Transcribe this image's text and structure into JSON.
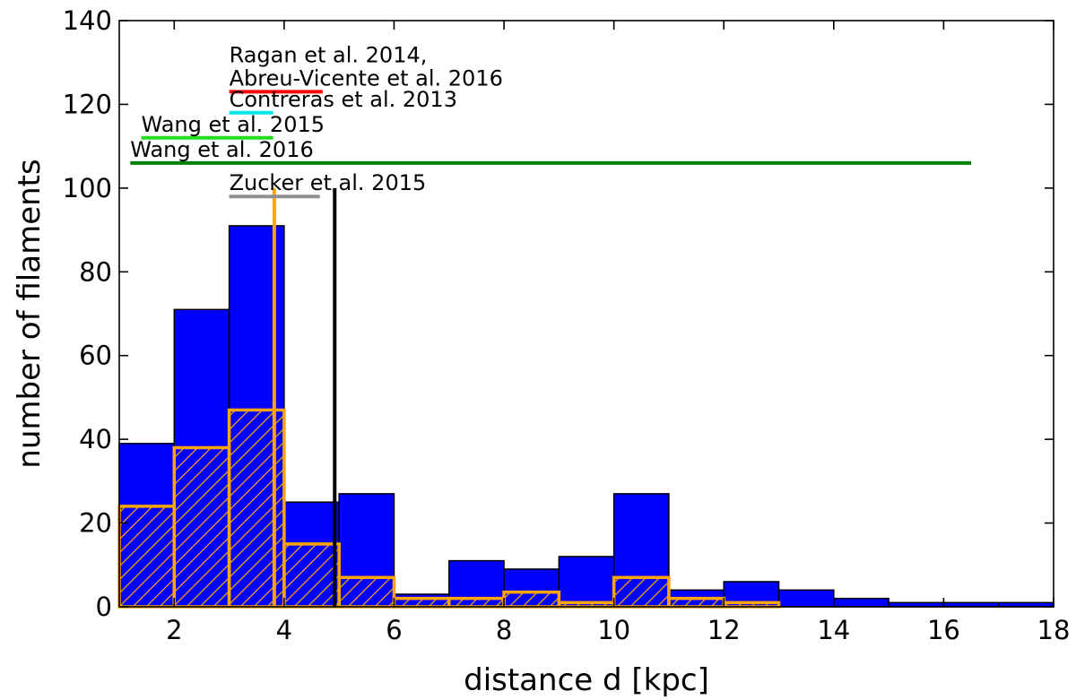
{
  "chart_data": {
    "type": "bar",
    "xlabel": "distance d [kpc]",
    "ylabel": "number of filaments",
    "xlim": [
      1,
      18
    ],
    "ylim": [
      0,
      140
    ],
    "grid": false,
    "x_ticks": [
      "2",
      "4",
      "6",
      "8",
      "10",
      "12",
      "14",
      "16",
      "18"
    ],
    "y_ticks": [
      "0",
      "20",
      "40",
      "60",
      "80",
      "100",
      "120",
      "140"
    ],
    "series": [
      {
        "color": "#0000ff",
        "style": "filled",
        "bins": [
          {
            "x0": 1,
            "x1": 2,
            "value": 39
          },
          {
            "x0": 2,
            "x1": 3,
            "value": 71
          },
          {
            "x0": 3,
            "x1": 4,
            "value": 91
          },
          {
            "x0": 4,
            "x1": 5,
            "value": 25
          },
          {
            "x0": 5,
            "x1": 6,
            "value": 27
          },
          {
            "x0": 6,
            "x1": 7,
            "value": 3
          },
          {
            "x0": 7,
            "x1": 8,
            "value": 11
          },
          {
            "x0": 8,
            "x1": 9,
            "value": 9
          },
          {
            "x0": 9,
            "x1": 10,
            "value": 12
          },
          {
            "x0": 10,
            "x1": 11,
            "value": 27
          },
          {
            "x0": 11,
            "x1": 12,
            "value": 4
          },
          {
            "x0": 12,
            "x1": 13,
            "value": 6
          },
          {
            "x0": 13,
            "x1": 14,
            "value": 4
          },
          {
            "x0": 14,
            "x1": 15,
            "value": 2
          },
          {
            "x0": 15,
            "x1": 16,
            "value": 1
          },
          {
            "x0": 16,
            "x1": 17,
            "value": 1
          },
          {
            "x0": 17,
            "x1": 18,
            "value": 1
          }
        ]
      },
      {
        "color": "#ffa500",
        "style": "hatched-outline",
        "bins": [
          {
            "x0": 1,
            "x1": 2,
            "value": 24
          },
          {
            "x0": 2,
            "x1": 3,
            "value": 38
          },
          {
            "x0": 3,
            "x1": 4,
            "value": 47
          },
          {
            "x0": 4,
            "x1": 5,
            "value": 15
          },
          {
            "x0": 5,
            "x1": 6,
            "value": 7
          },
          {
            "x0": 6,
            "x1": 7,
            "value": 2
          },
          {
            "x0": 7,
            "x1": 8,
            "value": 2
          },
          {
            "x0": 8,
            "x1": 9,
            "value": 3.5
          },
          {
            "x0": 9,
            "x1": 10,
            "value": 1
          },
          {
            "x0": 10,
            "x1": 11,
            "value": 7
          },
          {
            "x0": 11,
            "x1": 12,
            "value": 2
          },
          {
            "x0": 12,
            "x1": 13,
            "value": 1
          }
        ]
      }
    ],
    "vlines": [
      {
        "x": 3.82,
        "y0": 0,
        "y1": 100,
        "color": "#ffa500"
      },
      {
        "x": 4.92,
        "y0": 0,
        "y1": 100,
        "color": "#000000"
      }
    ],
    "ranges": [
      {
        "label": "Ragan et al. 2014,",
        "x0": 3.0,
        "x1": 4.7,
        "y": null,
        "color": null,
        "label_y": 130,
        "label_x": 3.0
      },
      {
        "label": "Abreu-Vicente et al. 2016",
        "x0": 3.0,
        "x1": 4.7,
        "y": 123,
        "color": "#ff0000",
        "label_y": 124.5,
        "label_x": 3.0
      },
      {
        "label": "Contreras et al. 2013",
        "x0": 3.0,
        "x1": 3.8,
        "y": 118,
        "color": "#00e5e5",
        "label_y": 119.5,
        "label_x": 3.0
      },
      {
        "label": "Wang et al. 2015",
        "x0": 1.4,
        "x1": 3.8,
        "y": 112,
        "color": "#22dd22",
        "label_y": 113.5,
        "label_x": 1.4
      },
      {
        "label": "Wang et al. 2016",
        "x0": 1.2,
        "x1": 16.5,
        "y": 106,
        "color": "#008000",
        "label_y": 107.5,
        "label_x": 1.2
      },
      {
        "label": "Zucker et al. 2015",
        "x0": 3.0,
        "x1": 4.65,
        "y": 98,
        "color": "#909090",
        "label_y": 99.5,
        "label_x": 3.0
      }
    ]
  }
}
